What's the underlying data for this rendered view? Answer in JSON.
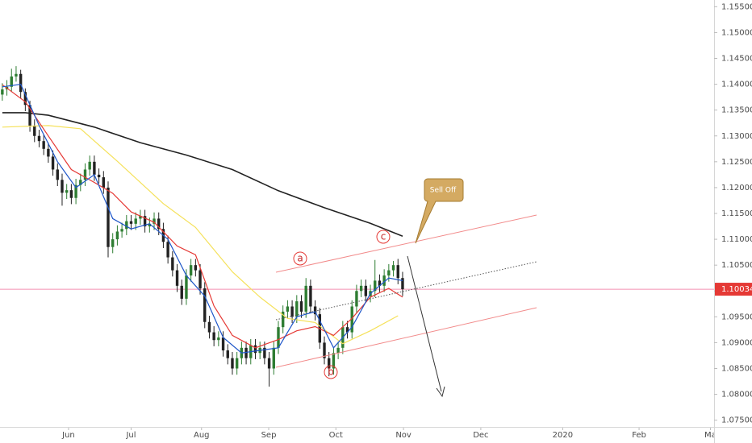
{
  "chart_data": {
    "type": "candlestick",
    "candles": [
      [
        1.138,
        1.1402,
        1.1368,
        1.139
      ],
      [
        1.139,
        1.1408,
        1.1378,
        1.1395
      ],
      [
        1.1395,
        1.143,
        1.1385,
        1.1415
      ],
      [
        1.1415,
        1.1435,
        1.1405,
        1.142
      ],
      [
        1.142,
        1.1428,
        1.1372,
        1.1385
      ],
      [
        1.1385,
        1.1392,
        1.1348,
        1.136
      ],
      [
        1.136,
        1.1368,
        1.1308,
        1.132
      ],
      [
        1.132,
        1.1332,
        1.1288,
        1.13
      ],
      [
        1.13,
        1.1312,
        1.1278,
        1.129
      ],
      [
        1.129,
        1.1302,
        1.1263,
        1.1275
      ],
      [
        1.1275,
        1.1287,
        1.1248,
        1.126
      ],
      [
        1.126,
        1.1272,
        1.1223,
        1.1235
      ],
      [
        1.1235,
        1.1247,
        1.1203,
        1.1215
      ],
      [
        1.1215,
        1.1227,
        1.1165,
        1.119
      ],
      [
        1.119,
        1.1207,
        1.1178,
        1.1195
      ],
      [
        1.1195,
        1.1207,
        1.1168,
        1.118
      ],
      [
        1.118,
        1.1217,
        1.1168,
        1.1205
      ],
      [
        1.1205,
        1.1227,
        1.1193,
        1.1215
      ],
      [
        1.1215,
        1.1247,
        1.1203,
        1.1235
      ],
      [
        1.1235,
        1.1262,
        1.1223,
        1.125
      ],
      [
        1.125,
        1.1262,
        1.1213,
        1.1225
      ],
      [
        1.1225,
        1.1237,
        1.1208,
        1.122
      ],
      [
        1.122,
        1.1232,
        1.1188,
        1.12
      ],
      [
        1.12,
        1.1212,
        1.1065,
        1.1085
      ],
      [
        1.1085,
        1.1112,
        1.1073,
        1.11
      ],
      [
        1.11,
        1.1127,
        1.1088,
        1.1115
      ],
      [
        1.1115,
        1.1132,
        1.1103,
        1.112
      ],
      [
        1.112,
        1.1147,
        1.1108,
        1.1135
      ],
      [
        1.1135,
        1.1147,
        1.1118,
        1.113
      ],
      [
        1.113,
        1.1152,
        1.1118,
        1.114
      ],
      [
        1.114,
        1.1157,
        1.1128,
        1.1145
      ],
      [
        1.1145,
        1.1157,
        1.1113,
        1.1125
      ],
      [
        1.1125,
        1.1142,
        1.1113,
        1.113
      ],
      [
        1.113,
        1.1152,
        1.1118,
        1.114
      ],
      [
        1.114,
        1.1152,
        1.1108,
        1.112
      ],
      [
        1.112,
        1.1132,
        1.1083,
        1.1095
      ],
      [
        1.1095,
        1.1107,
        1.1053,
        1.1065
      ],
      [
        1.1065,
        1.1077,
        1.1028,
        1.104
      ],
      [
        1.104,
        1.1052,
        1.0998,
        1.101
      ],
      [
        1.101,
        1.1022,
        1.0973,
        1.0985
      ],
      [
        1.0985,
        1.1042,
        1.0973,
        1.103
      ],
      [
        1.103,
        1.1062,
        1.1018,
        1.105
      ],
      [
        1.105,
        1.1062,
        1.1028,
        1.104
      ],
      [
        1.104,
        1.1052,
        1.0993,
        1.1005
      ],
      [
        1.1005,
        1.1017,
        1.0928,
        1.094
      ],
      [
        1.094,
        1.0952,
        1.0908,
        1.092
      ],
      [
        1.092,
        1.0932,
        1.0893,
        1.0905
      ],
      [
        1.0905,
        1.0922,
        1.0893,
        1.091
      ],
      [
        1.091,
        1.0922,
        1.0873,
        1.0885
      ],
      [
        1.0885,
        1.0897,
        1.0858,
        1.087
      ],
      [
        1.087,
        1.0882,
        1.0838,
        1.085
      ],
      [
        1.085,
        1.0882,
        1.0838,
        1.087
      ],
      [
        1.087,
        1.0902,
        1.0858,
        1.089
      ],
      [
        1.089,
        1.0902,
        1.0858,
        1.087
      ],
      [
        1.087,
        1.0907,
        1.0858,
        1.0895
      ],
      [
        1.0895,
        1.0907,
        1.0868,
        1.088
      ],
      [
        1.088,
        1.0902,
        1.0868,
        1.089
      ],
      [
        1.089,
        1.0902,
        1.0858,
        1.087
      ],
      [
        1.087,
        1.0882,
        1.0815,
        1.085
      ],
      [
        1.085,
        1.0902,
        1.0838,
        1.089
      ],
      [
        1.089,
        1.0942,
        1.0878,
        1.093
      ],
      [
        1.093,
        1.0972,
        1.0918,
        1.096
      ],
      [
        1.096,
        1.0982,
        1.0948,
        1.097
      ],
      [
        1.097,
        1.0982,
        1.0938,
        1.095
      ],
      [
        1.095,
        1.0992,
        1.0938,
        1.098
      ],
      [
        1.098,
        1.0992,
        1.0948,
        1.096
      ],
      [
        1.096,
        1.1025,
        1.0948,
        1.101
      ],
      [
        1.101,
        1.1022,
        1.0958,
        1.097
      ],
      [
        1.097,
        1.0982,
        1.0943,
        1.0955
      ],
      [
        1.0955,
        1.0967,
        1.0888,
        1.09
      ],
      [
        1.09,
        1.0912,
        1.0858,
        1.087
      ],
      [
        1.087,
        1.0882,
        1.0835,
        1.085
      ],
      [
        1.085,
        1.0892,
        1.0838,
        1.088
      ],
      [
        1.088,
        1.0902,
        1.0868,
        1.089
      ],
      [
        1.089,
        1.0942,
        1.0878,
        1.093
      ],
      [
        1.093,
        1.0942,
        1.0908,
        1.092
      ],
      [
        1.092,
        1.0982,
        1.0908,
        1.097
      ],
      [
        1.097,
        1.1012,
        1.0958,
        1.1
      ],
      [
        1.1,
        1.1022,
        1.0988,
        1.101
      ],
      [
        1.101,
        1.1022,
        1.0978,
        1.099
      ],
      [
        1.099,
        1.1012,
        1.0978,
        1.1
      ],
      [
        1.1,
        1.106,
        1.0988,
        1.102
      ],
      [
        1.102,
        1.1032,
        1.0998,
        1.101
      ],
      [
        1.101,
        1.1042,
        1.0998,
        1.103
      ],
      [
        1.103,
        1.1052,
        1.1018,
        1.104
      ],
      [
        1.104,
        1.1058,
        1.1028,
        1.105
      ],
      [
        1.105,
        1.1062,
        1.1013,
        1.1025
      ],
      [
        1.1025,
        1.1037,
        1.099,
        1.10034
      ]
    ],
    "up_color": "#2e7d32",
    "down_color": "#222222",
    "series": [
      {
        "color": "#222222",
        "x": [
          0,
          5,
          10,
          20,
          30,
          40,
          50,
          60,
          70,
          80,
          87
        ],
        "values": [
          1.1345,
          1.1345,
          1.134,
          1.1317,
          1.1287,
          1.1263,
          1.1235,
          1.1194,
          1.1161,
          1.1131,
          1.1106
        ]
      },
      {
        "color": "#f5e15a",
        "x": [
          0,
          10,
          17,
          25,
          35,
          42,
          50,
          56,
          62,
          68,
          74,
          80,
          86
        ],
        "values": [
          1.1317,
          1.132,
          1.1314,
          1.1251,
          1.1169,
          1.1123,
          1.1037,
          1.0988,
          1.0947,
          1.0939,
          1.0898,
          1.0923,
          1.0952
        ]
      },
      {
        "color": "#e53935",
        "x": [
          0,
          5,
          10,
          15,
          20,
          24,
          28,
          33,
          38,
          42,
          46,
          50,
          55,
          60,
          64,
          68,
          72,
          76,
          80,
          84,
          87
        ],
        "values": [
          1.1399,
          1.1366,
          1.13,
          1.1235,
          1.121,
          1.1189,
          1.1153,
          1.1133,
          1.1087,
          1.107,
          1.0971,
          1.0914,
          1.089,
          1.0906,
          1.0923,
          1.0931,
          1.0914,
          1.0947,
          1.0988,
          1.1005,
          1.0988
        ]
      },
      {
        "color": "#1e56c8",
        "x": [
          0,
          4,
          8,
          12,
          16,
          20,
          24,
          28,
          32,
          36,
          40,
          44,
          48,
          52,
          56,
          60,
          64,
          68,
          72,
          76,
          80,
          84,
          87
        ],
        "values": [
          1.1395,
          1.14,
          1.132,
          1.125,
          1.12,
          1.1225,
          1.114,
          1.112,
          1.113,
          1.11,
          1.103,
          1.099,
          1.091,
          1.088,
          1.0885,
          1.089,
          1.095,
          1.096,
          1.089,
          1.093,
          1.0995,
          1.1025,
          1.102
        ]
      }
    ],
    "xlim": [
      -0.5,
      154.7
    ],
    "xticks": [
      {
        "value": 14.4,
        "label": "Jun"
      },
      {
        "value": 28,
        "label": "Jul"
      },
      {
        "value": 43.3,
        "label": "Aug"
      },
      {
        "value": 57.9,
        "label": "Sep"
      },
      {
        "value": 72.5,
        "label": "Oct"
      },
      {
        "value": 87.2,
        "label": "Nov"
      },
      {
        "value": 104,
        "label": "Dec"
      },
      {
        "value": 121.8,
        "label": "2020"
      },
      {
        "value": 138.4,
        "label": "Feb"
      },
      {
        "value": 153.9,
        "label": "Ma"
      }
    ],
    "ylim": [
      1.0737,
      1.1563
    ],
    "yticks": [
      {
        "value": 1.155,
        "label": "1.15500"
      },
      {
        "value": 1.15,
        "label": "1.15000"
      },
      {
        "value": 1.145,
        "label": "1.14500"
      },
      {
        "value": 1.14,
        "label": "1.14000"
      },
      {
        "value": 1.135,
        "label": "1.13500"
      },
      {
        "value": 1.13,
        "label": "1.13000"
      },
      {
        "value": 1.125,
        "label": "1.12500"
      },
      {
        "value": 1.12,
        "label": "1.12000"
      },
      {
        "value": 1.115,
        "label": "1.11500"
      },
      {
        "value": 1.11,
        "label": "1.11000"
      },
      {
        "value": 1.105,
        "label": "1.10500"
      },
      {
        "value": 1.1,
        "label": "1.10000"
      },
      {
        "value": 1.095,
        "label": "1.09500"
      },
      {
        "value": 1.09,
        "label": "1.09000"
      },
      {
        "value": 1.085,
        "label": "1.08500"
      },
      {
        "value": 1.08,
        "label": "1.08000"
      },
      {
        "value": 1.075,
        "label": "1.07500"
      }
    ],
    "last_price": 1.10034,
    "price_line_color": "#f48fb1",
    "price_label_color": "#e53935",
    "annotations": {
      "a": "a",
      "b": "b",
      "c": "c",
      "callout": "Sell Off"
    }
  }
}
